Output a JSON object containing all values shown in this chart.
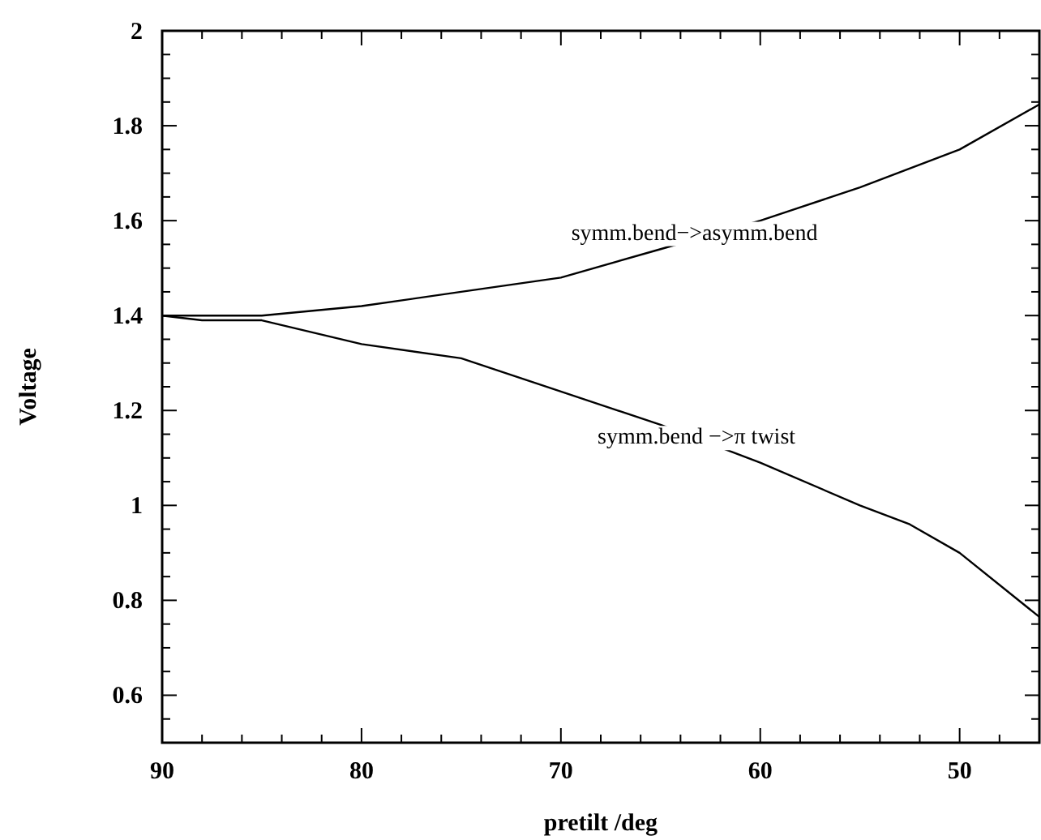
{
  "chart_data": {
    "type": "line",
    "xlabel": "pretilt /deg",
    "ylabel": "Voltage",
    "xlim": [
      90,
      46
    ],
    "ylim": [
      0.5,
      2
    ],
    "xticks": [
      90,
      {
        "value": 88,
        "label": null
      },
      {
        "value": 86,
        "label": null
      },
      {
        "value": 84,
        "label": null
      },
      {
        "value": 82,
        "label": null
      },
      80,
      {
        "value": 78,
        "label": null
      },
      {
        "value": 76,
        "label": null
      },
      {
        "value": 74,
        "label": null
      },
      {
        "value": 72,
        "label": null
      },
      70,
      {
        "value": 68,
        "label": null
      },
      {
        "value": 66,
        "label": null
      },
      {
        "value": 64,
        "label": null
      },
      {
        "value": 62,
        "label": null
      },
      60,
      {
        "value": 58,
        "label": null
      },
      {
        "value": 56,
        "label": null
      },
      {
        "value": 54,
        "label": null
      },
      {
        "value": 52,
        "label": null
      },
      50,
      {
        "value": 48,
        "label": null
      },
      {
        "value": 46,
        "label": null
      }
    ],
    "yticks": [
      {
        "value": 0.55,
        "label": null
      },
      0.6,
      {
        "value": 0.65,
        "label": null
      },
      {
        "value": 0.7,
        "label": null
      },
      {
        "value": 0.75,
        "label": null
      },
      0.8,
      {
        "value": 0.85,
        "label": null
      },
      {
        "value": 0.9,
        "label": null
      },
      {
        "value": 0.95,
        "label": null
      },
      1,
      {
        "value": 1.05,
        "label": null
      },
      {
        "value": 1.1,
        "label": null
      },
      {
        "value": 1.15,
        "label": null
      },
      1.2,
      {
        "value": 1.25,
        "label": null
      },
      {
        "value": 1.3,
        "label": null
      },
      {
        "value": 1.35,
        "label": null
      },
      1.4,
      {
        "value": 1.45,
        "label": null
      },
      {
        "value": 1.5,
        "label": null
      },
      {
        "value": 1.55,
        "label": null
      },
      1.6,
      {
        "value": 1.65,
        "label": null
      },
      {
        "value": 1.7,
        "label": null
      },
      {
        "value": 1.75,
        "label": null
      },
      1.8,
      {
        "value": 1.85,
        "label": null
      },
      {
        "value": 1.9,
        "label": null
      },
      {
        "value": 1.95,
        "label": null
      },
      2
    ],
    "series": [
      {
        "color": "#000000",
        "x": [
          90,
          88,
          85,
          80,
          75,
          70,
          65,
          60,
          55,
          50,
          46
        ],
        "values": [
          1.4,
          1.4,
          1.4,
          1.42,
          1.45,
          1.48,
          1.54,
          1.6,
          1.67,
          1.75,
          1.845
        ]
      },
      {
        "color": "#000000",
        "x": [
          90,
          88,
          85,
          80,
          75,
          70,
          65,
          60,
          55,
          52.5,
          50,
          46
        ],
        "values": [
          1.4,
          1.39,
          1.39,
          1.34,
          1.31,
          1.24,
          1.17,
          1.09,
          1.0,
          0.96,
          0.9,
          0.765
        ]
      }
    ],
    "annotations": [
      {
        "text": "symm.bend−>asymm.bend",
        "x": 63.3,
        "y": 1.56
      },
      {
        "text": "symm.bend −>π twist",
        "x": 63.2,
        "y": 1.13
      }
    ],
    "grid": false,
    "marker": "none",
    "line_style": "solid"
  }
}
